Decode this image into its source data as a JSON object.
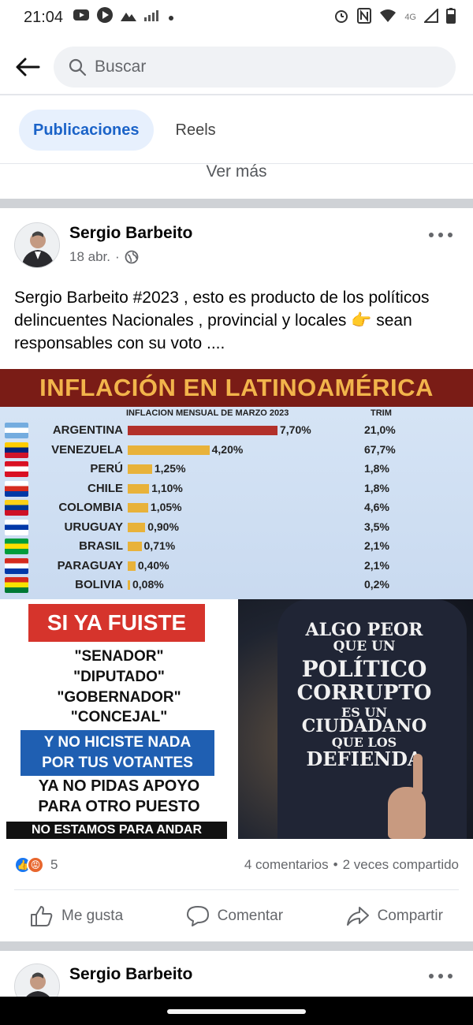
{
  "status_bar": {
    "time": "21:04",
    "network": "4G"
  },
  "search": {
    "placeholder": "Buscar"
  },
  "tabs": [
    {
      "label": "Publicaciones",
      "active": true
    },
    {
      "label": "Reels",
      "active": false
    }
  ],
  "see_more": "Ver más",
  "post": {
    "author": "Sergio Barbeito",
    "date": "18 abr.",
    "text": "Sergio Barbeito #2023 , esto es producto de los políticos delincuentes Nacionales , provincial  y locales 👉  sean responsables con su voto  ....",
    "reactions_count": "5",
    "comments": "4 comentarios",
    "shares": "2 veces compartido",
    "actions": {
      "like": "Me gusta",
      "comment": "Comentar",
      "share": "Compartir"
    }
  },
  "image_inflation": {
    "title": "INFLACIÓN EN LATINOAMÉRICA",
    "subtitle": "INFLACION MENSUAL DE MARZO 2023",
    "trim_header": "TRIM",
    "rows": [
      {
        "country": "ARGENTINA",
        "value": 7.7,
        "label": "7,70%",
        "trim": "21,0%"
      },
      {
        "country": "VENEZUELA",
        "value": 4.2,
        "label": "4,20%",
        "trim": "67,7%"
      },
      {
        "country": "PERÚ",
        "value": 1.25,
        "label": "1,25%",
        "trim": "1,8%"
      },
      {
        "country": "CHILE",
        "value": 1.1,
        "label": "1,10%",
        "trim": "1,8%"
      },
      {
        "country": "COLOMBIA",
        "value": 1.05,
        "label": "1,05%",
        "trim": "4,6%"
      },
      {
        "country": "URUGUAY",
        "value": 0.9,
        "label": "0,90%",
        "trim": "3,5%"
      },
      {
        "country": "BRASIL",
        "value": 0.71,
        "label": "0,71%",
        "trim": "2,1%"
      },
      {
        "country": "PARAGUAY",
        "value": 0.4,
        "label": "0,40%",
        "trim": "2,1%"
      },
      {
        "country": "BOLIVIA",
        "value": 0.08,
        "label": "0,08%",
        "trim": "0,2%"
      }
    ],
    "colors": {
      "top_bar": "#b2302a",
      "bar": "#e8b23a",
      "title": "#f2b44b"
    }
  },
  "image_meme_left": {
    "header": "SI YA FUISTE",
    "roles": [
      "\"SENADOR\"",
      "\"DIPUTADO\"",
      "\"GOBERNADOR\"",
      "\"CONCEJAL\""
    ],
    "blue_line1": "Y NO HICISTE NADA",
    "blue_line2": "POR TUS VOTANTES",
    "line1": "YA NO PIDAS APOYO",
    "line2": "PARA OTRO PUESTO",
    "footer": "NO ESTAMOS PARA ANDAR"
  },
  "image_meme_right": {
    "lines": [
      "ALGO PEOR",
      "QUE UN",
      "POLÍTICO",
      "CORRUPTO",
      "ES UN",
      "CIUDADANO",
      "QUE LOS",
      "DEFIENDA"
    ]
  },
  "post2": {
    "author": "Sergio Barbeito"
  }
}
